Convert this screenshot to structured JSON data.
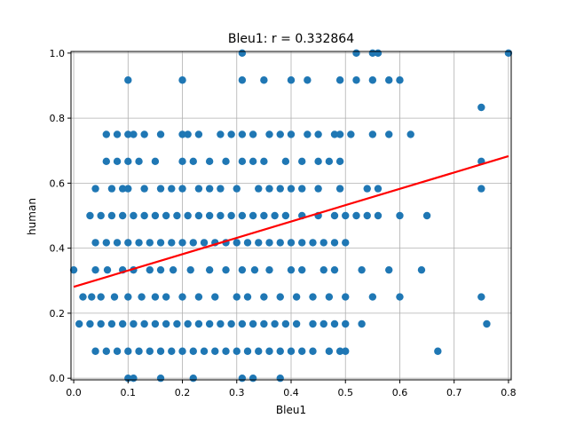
{
  "chart_data": {
    "type": "scatter",
    "title": "Bleu1: r = 0.332864",
    "xlabel": "Bleu1",
    "ylabel": "human",
    "xlim": [
      -0.005,
      0.805
    ],
    "ylim": [
      -0.005,
      1.005
    ],
    "xticks": [
      "0.0",
      "0.1",
      "0.2",
      "0.3",
      "0.4",
      "0.5",
      "0.6",
      "0.7",
      "0.8"
    ],
    "yticks": [
      "0.0",
      "0.2",
      "0.4",
      "0.6",
      "0.8",
      "1.0"
    ],
    "grid": true,
    "colors": {
      "points": "#1f77b4",
      "fit_line": "#ff0000",
      "grid": "#b0b0b0"
    },
    "fit_line": {
      "x": [
        0.0,
        0.8
      ],
      "y": [
        0.281,
        0.683
      ]
    },
    "series": [
      {
        "x": [
          0.0,
          0.017,
          0.033,
          0.04,
          0.05,
          0.062,
          0.075,
          0.09,
          0.1,
          0.11,
          0.125,
          0.14,
          0.15,
          0.16,
          0.17,
          0.183,
          0.2,
          0.215,
          0.23,
          0.25,
          0.26,
          0.28,
          0.3,
          0.31,
          0.32,
          0.333,
          0.35,
          0.36,
          0.38,
          0.4,
          0.41,
          0.42,
          0.44,
          0.46,
          0.47,
          0.48,
          0.5,
          0.53,
          0.55,
          0.58,
          0.6,
          0.64,
          0.75,
          0.76,
          0.01,
          0.03,
          0.05,
          0.07,
          0.09,
          0.11,
          0.13,
          0.15,
          0.17,
          0.19,
          0.21,
          0.23,
          0.25,
          0.27,
          0.29,
          0.31,
          0.33,
          0.35,
          0.37,
          0.39,
          0.41,
          0.44,
          0.46,
          0.48,
          0.5,
          0.53,
          0.04,
          0.06,
          0.08,
          0.1,
          0.12,
          0.14,
          0.16,
          0.18,
          0.2,
          0.22,
          0.24,
          0.26,
          0.28,
          0.3,
          0.32,
          0.34,
          0.36,
          0.38,
          0.4,
          0.42,
          0.44,
          0.47,
          0.49,
          0.5,
          0.04,
          0.06,
          0.08,
          0.1,
          0.12,
          0.14,
          0.16,
          0.18,
          0.2,
          0.22,
          0.24,
          0.26,
          0.28,
          0.3,
          0.32,
          0.34,
          0.36,
          0.38,
          0.4,
          0.42,
          0.44,
          0.46,
          0.48,
          0.5,
          0.52,
          0.54,
          0.56,
          0.6,
          0.65,
          0.03,
          0.05,
          0.07,
          0.09,
          0.11,
          0.13,
          0.15,
          0.17,
          0.19,
          0.21,
          0.23,
          0.25,
          0.27,
          0.29,
          0.31,
          0.33,
          0.35,
          0.37,
          0.39,
          0.42,
          0.45,
          0.48,
          0.5,
          0.75,
          0.04,
          0.07,
          0.09,
          0.1,
          0.13,
          0.16,
          0.18,
          0.2,
          0.23,
          0.25,
          0.27,
          0.3,
          0.34,
          0.36,
          0.38,
          0.4,
          0.42,
          0.45,
          0.49,
          0.54,
          0.56,
          0.75,
          0.06,
          0.08,
          0.1,
          0.12,
          0.15,
          0.2,
          0.22,
          0.25,
          0.28,
          0.31,
          0.33,
          0.35,
          0.39,
          0.42,
          0.45,
          0.47,
          0.49,
          0.06,
          0.08,
          0.1,
          0.11,
          0.13,
          0.16,
          0.2,
          0.21,
          0.23,
          0.27,
          0.29,
          0.31,
          0.33,
          0.36,
          0.38,
          0.4,
          0.43,
          0.45,
          0.48,
          0.49,
          0.51,
          0.55,
          0.58,
          0.62,
          0.67,
          0.75,
          0.1,
          0.2,
          0.31,
          0.35,
          0.4,
          0.43,
          0.49,
          0.52,
          0.55,
          0.58,
          0.6,
          0.31,
          0.52,
          0.55,
          0.56,
          0.8,
          0.1,
          0.11,
          0.16,
          0.22,
          0.31,
          0.33,
          0.38
        ],
        "y": [
          0.333,
          0.25,
          0.25,
          0.333,
          0.25,
          0.333,
          0.25,
          0.333,
          0.25,
          0.333,
          0.25,
          0.333,
          0.25,
          0.333,
          0.25,
          0.333,
          0.25,
          0.333,
          0.25,
          0.333,
          0.25,
          0.333,
          0.25,
          0.333,
          0.25,
          0.333,
          0.25,
          0.333,
          0.25,
          0.333,
          0.25,
          0.333,
          0.25,
          0.333,
          0.25,
          0.333,
          0.25,
          0.333,
          0.25,
          0.333,
          0.25,
          0.333,
          0.25,
          0.167,
          0.167,
          0.167,
          0.167,
          0.167,
          0.167,
          0.167,
          0.167,
          0.167,
          0.167,
          0.167,
          0.167,
          0.167,
          0.167,
          0.167,
          0.167,
          0.167,
          0.167,
          0.167,
          0.167,
          0.167,
          0.167,
          0.167,
          0.167,
          0.167,
          0.167,
          0.167,
          0.083,
          0.083,
          0.083,
          0.083,
          0.083,
          0.083,
          0.083,
          0.083,
          0.083,
          0.083,
          0.083,
          0.083,
          0.083,
          0.083,
          0.083,
          0.083,
          0.083,
          0.083,
          0.083,
          0.083,
          0.083,
          0.083,
          0.083,
          0.083,
          0.417,
          0.417,
          0.417,
          0.417,
          0.417,
          0.417,
          0.417,
          0.417,
          0.417,
          0.417,
          0.417,
          0.417,
          0.417,
          0.417,
          0.417,
          0.417,
          0.417,
          0.417,
          0.417,
          0.417,
          0.417,
          0.417,
          0.417,
          0.417,
          0.5,
          0.5,
          0.5,
          0.5,
          0.5,
          0.5,
          0.5,
          0.5,
          0.5,
          0.5,
          0.5,
          0.5,
          0.5,
          0.5,
          0.5,
          0.5,
          0.5,
          0.5,
          0.5,
          0.5,
          0.5,
          0.5,
          0.5,
          0.5,
          0.5,
          0.5,
          0.5,
          0.5,
          0.583,
          0.583,
          0.583,
          0.583,
          0.583,
          0.583,
          0.583,
          0.583,
          0.583,
          0.583,
          0.583,
          0.583,
          0.583,
          0.583,
          0.583,
          0.583,
          0.583,
          0.583,
          0.583,
          0.583,
          0.583,
          0.583,
          0.667,
          0.667,
          0.667,
          0.667,
          0.667,
          0.667,
          0.667,
          0.667,
          0.667,
          0.667,
          0.667,
          0.667,
          0.667,
          0.667,
          0.667,
          0.667,
          0.667,
          0.667,
          0.75,
          0.75,
          0.75,
          0.75,
          0.75,
          0.75,
          0.75,
          0.75,
          0.75,
          0.75,
          0.75,
          0.75,
          0.75,
          0.75,
          0.75,
          0.75,
          0.75,
          0.75,
          0.75,
          0.75,
          0.75,
          0.75,
          0.75,
          0.75,
          0.083,
          0.833,
          0.917,
          0.917,
          0.917,
          0.917,
          0.917,
          0.917,
          0.917,
          0.917,
          0.917,
          0.917,
          0.917,
          1.0,
          1.0,
          1.0,
          1.0,
          1.0,
          0.0,
          0.0,
          0.0,
          0.0,
          0.0,
          0.0,
          0.0
        ]
      }
    ]
  }
}
